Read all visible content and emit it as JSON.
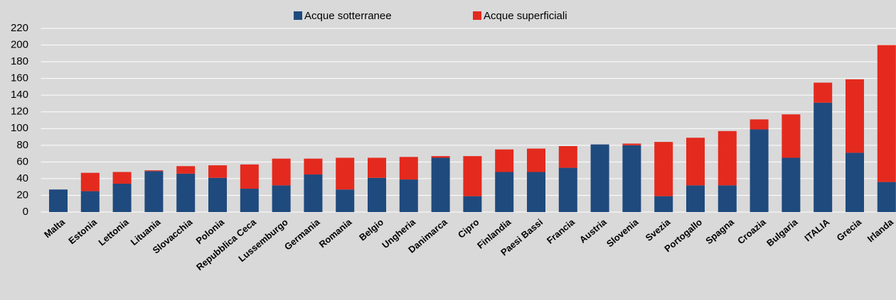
{
  "chart_data": {
    "type": "stacked_bar",
    "categories": [
      "Malta",
      "Estonia",
      "Lettonia",
      "Lituania",
      "Slovacchia",
      "Polonia",
      "Repubblica Ceca",
      "Lussemburgo",
      "Germania",
      "Romania",
      "Belgio",
      "Ungheria",
      "Danimarca",
      "Cipro",
      "Finlandia",
      "Paesi Bassi",
      "Francia",
      "Austria",
      "Slovenia",
      "Svezia",
      "Portogallo",
      "Spagna",
      "Croazia",
      "Bulgaria",
      "ITALIA",
      "Grecia",
      "Irlanda"
    ],
    "series": [
      {
        "name": "Acque sotterranee",
        "color": "#1f4a7e",
        "values": [
          27,
          25,
          34,
          49,
          46,
          41,
          28,
          32,
          45,
          27,
          41,
          39,
          65,
          19,
          48,
          48,
          53,
          81,
          80,
          19,
          32,
          32,
          99,
          65,
          131,
          71,
          36
        ]
      },
      {
        "name": "Acque superficiali",
        "color": "#e42a1e",
        "values": [
          0,
          22,
          14,
          1,
          9,
          15,
          29,
          32,
          19,
          38,
          24,
          27,
          2,
          48,
          27,
          28,
          26,
          0,
          2,
          65,
          57,
          65,
          12,
          52,
          24,
          88,
          164
        ]
      }
    ],
    "ylim": [
      0,
      220
    ],
    "yticks": [
      0,
      20,
      40,
      60,
      80,
      100,
      120,
      140,
      160,
      180,
      200,
      220
    ],
    "grid": true,
    "legend": "top"
  }
}
